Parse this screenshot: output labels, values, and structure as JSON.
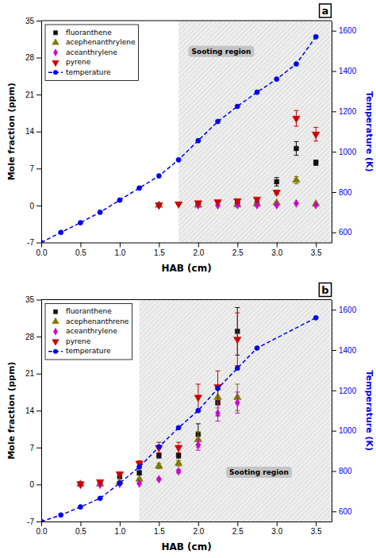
{
  "chart_data": [
    {
      "type": "scatter",
      "title": "a",
      "xlabel": "HAB (cm)",
      "ylabel": "Mole fraction (ppm)",
      "y2label": "Temperature (K)",
      "xlim": [
        0.0,
        3.7
      ],
      "xticks": [
        {
          "value": 0.0,
          "label": "0.0"
        },
        0.5,
        {
          "value": 1.0,
          "label": "1.0"
        },
        1.5,
        {
          "value": 2.0,
          "label": "2.0"
        },
        2.5,
        {
          "value": 3.0,
          "label": "3.0"
        },
        3.5
      ],
      "ylim": [
        -7,
        35
      ],
      "yticks": [
        -7,
        0,
        7,
        14,
        21,
        28,
        35
      ],
      "y2lim": [
        550,
        1650
      ],
      "y2ticks": [
        600,
        800,
        1000,
        1200,
        1400,
        1600
      ],
      "grid": false,
      "legend": "upper left",
      "annotations": [
        {
          "text": "Sooting region",
          "x_start": 1.75,
          "color": "#DDDDDD"
        }
      ],
      "series": [
        {
          "name": "fluoranthene",
          "color": "#111111",
          "marker": "square",
          "x": [
            2.0,
            2.5,
            2.75,
            3.0,
            3.25,
            3.5
          ],
          "values": [
            0.25,
            0.3,
            0.35,
            4.5,
            10.8,
            8.1
          ],
          "yerr": [
            0.08,
            0.08,
            0.08,
            0.8,
            1.3,
            0.5
          ]
        },
        {
          "name": "acephenanthrylene",
          "color": "#7B7B00",
          "marker": "triangle-up",
          "x": [
            1.5,
            2.0,
            2.5,
            2.75,
            3.0,
            3.25,
            3.5
          ],
          "values": [
            0.05,
            0.08,
            0.15,
            0.3,
            0.5,
            4.8,
            0.3
          ],
          "yerr": [
            0.02,
            0.03,
            0.04,
            0.08,
            0.1,
            0.7,
            0.08
          ]
        },
        {
          "name": "aceanthrylene",
          "color": "#CC00CC",
          "marker": "diamond",
          "x": [
            1.5,
            2.0,
            2.25,
            2.5,
            2.75,
            3.0,
            3.25,
            3.5
          ],
          "values": [
            0.0,
            0.04,
            0.04,
            0.08,
            0.08,
            0.08,
            0.4,
            0.08
          ],
          "yerr": [
            0.01,
            0.01,
            0.01,
            0.01,
            0.01,
            0.01,
            0.04,
            0.01
          ]
        },
        {
          "name": "pyrene",
          "color": "#CC0000",
          "marker": "triangle-down",
          "x": [
            1.5,
            1.75,
            2.0,
            2.25,
            2.5,
            2.75,
            3.0,
            3.25,
            3.5
          ],
          "values": [
            0.12,
            0.3,
            0.5,
            0.7,
            0.9,
            1.2,
            2.5,
            16.5,
            13.5
          ],
          "yerr": [
            0.04,
            0.08,
            0.1,
            0.1,
            0.15,
            0.2,
            0.4,
            1.5,
            1.3
          ]
        },
        {
          "name": "temperature",
          "color": "#0000EE",
          "type": "line",
          "axis": "y2",
          "marker": "circle",
          "line_style": "dashed",
          "x": [
            0.0,
            0.25,
            0.5,
            0.75,
            1.0,
            1.25,
            1.5,
            1.75,
            2.0,
            2.25,
            2.5,
            2.75,
            3.0,
            3.25,
            3.5
          ],
          "values": [
            550,
            600,
            648,
            700,
            760,
            820,
            880,
            960,
            1055,
            1150,
            1225,
            1295,
            1360,
            1435,
            1570
          ]
        }
      ]
    },
    {
      "type": "scatter",
      "title": "b",
      "xlabel": "HAB (cm)",
      "ylabel": "Mole fraction (ppm)",
      "y2label": "Temperature (K)",
      "xlim": [
        0.0,
        3.7
      ],
      "xticks": [
        {
          "value": 0.0,
          "label": "0.0"
        },
        0.5,
        {
          "value": 1.0,
          "label": "1.0"
        },
        1.5,
        {
          "value": 2.0,
          "label": "2.0"
        },
        2.5,
        {
          "value": 3.0,
          "label": "3.0"
        },
        3.5
      ],
      "ylim": [
        -7,
        35
      ],
      "yticks": [
        -7,
        0,
        7,
        14,
        21,
        28,
        35
      ],
      "y2lim": [
        550,
        1650
      ],
      "y2ticks": [
        600,
        800,
        1000,
        1200,
        1400,
        1600
      ],
      "grid": false,
      "legend": "upper left",
      "annotations": [
        {
          "text": "Sooting region",
          "x_start": 1.25,
          "color": "#DDDDDD"
        }
      ],
      "series": [
        {
          "name": "fluoranthene",
          "color": "#111111",
          "marker": "square",
          "x": [
            0.5,
            0.75,
            1.0,
            1.25,
            1.5,
            1.75,
            2.0,
            2.25,
            2.5
          ],
          "values": [
            0.15,
            0.3,
            1.5,
            2.2,
            5.5,
            5.5,
            9.5,
            15.5,
            29.0
          ],
          "yerr": [
            0.05,
            0.1,
            0.3,
            0.4,
            0.5,
            0.5,
            2.0,
            2.5,
            4.5
          ]
        },
        {
          "name": "acephenanthrene",
          "color": "#7B7B00",
          "marker": "triangle-up",
          "x": [
            0.5,
            0.75,
            1.0,
            1.25,
            1.5,
            1.75,
            2.0,
            2.25,
            2.5
          ],
          "values": [
            0.05,
            0.1,
            0.5,
            1.0,
            3.5,
            4.0,
            8.5,
            16.5,
            16.5
          ],
          "yerr": [
            0.02,
            0.05,
            0.1,
            0.2,
            0.5,
            0.5,
            1.5,
            2.0,
            2.5
          ]
        },
        {
          "name": "aceanthrylene",
          "color": "#CC00CC",
          "marker": "diamond",
          "x": [
            0.5,
            0.75,
            1.0,
            1.25,
            1.5,
            1.75,
            2.0,
            2.25,
            2.5
          ],
          "values": [
            -0.05,
            -0.05,
            0.1,
            0.2,
            1.0,
            2.5,
            7.5,
            13.5,
            15.5
          ],
          "yerr": [
            0.03,
            0.03,
            0.05,
            0.1,
            0.2,
            0.3,
            1.0,
            1.5,
            2.0
          ]
        },
        {
          "name": "pyrene",
          "color": "#CC0000",
          "marker": "triangle-down",
          "x": [
            0.5,
            0.75,
            1.0,
            1.25,
            1.5,
            1.75,
            2.0,
            2.25,
            2.5
          ],
          "values": [
            0.1,
            0.5,
            2.0,
            4.0,
            7.0,
            7.0,
            16.5,
            18.5,
            27.5
          ],
          "yerr": [
            0.05,
            0.1,
            0.3,
            0.5,
            1.0,
            1.0,
            2.5,
            3.0,
            5.0
          ]
        },
        {
          "name": "temperature",
          "color": "#0000EE",
          "type": "line",
          "axis": "y2",
          "marker": "circle",
          "line_style": "dashed",
          "x": [
            0.0,
            0.25,
            0.5,
            0.75,
            1.0,
            1.25,
            1.5,
            1.75,
            2.0,
            2.25,
            2.5,
            2.75,
            3.5
          ],
          "values": [
            550,
            582,
            622,
            665,
            740,
            820,
            920,
            1015,
            1100,
            1210,
            1310,
            1410,
            1560
          ]
        }
      ]
    }
  ]
}
